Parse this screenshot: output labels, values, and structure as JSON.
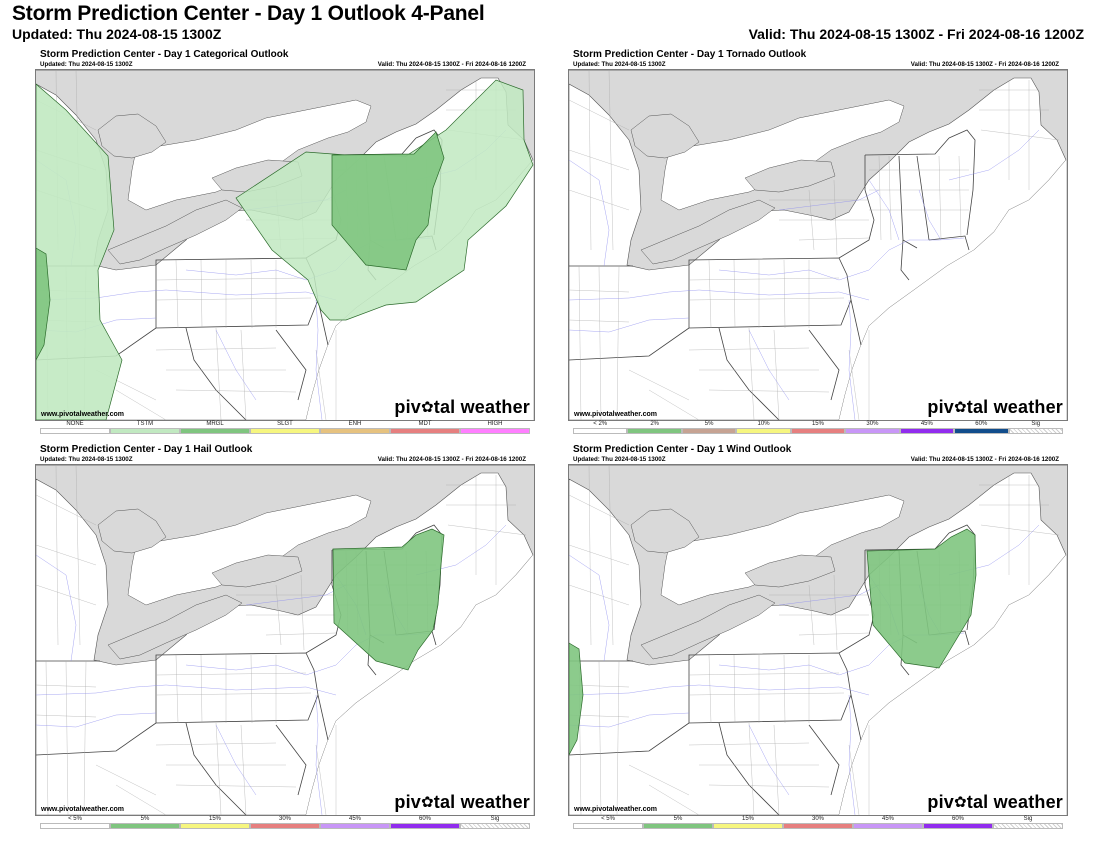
{
  "header": {
    "title": "Storm Prediction Center - Day 1 Outlook 4-Panel",
    "updated": "Updated: Thu 2024-08-15 1300Z",
    "valid": "Valid: Thu 2024-08-15 1300Z - Fri 2024-08-16 1200Z"
  },
  "watermark": {
    "site": "www.pivotalweather.com",
    "brand_a": "piv",
    "brand_b": "tal weather"
  },
  "panels": [
    {
      "title": "Storm Prediction Center - Day 1 Categorical Outlook",
      "updated": "Updated: Thu 2024-08-15 1300Z",
      "valid": "Valid: Thu 2024-08-15 1300Z - Fri 2024-08-16 1200Z",
      "legend": [
        {
          "label": "NONE",
          "color": "#ffffff"
        },
        {
          "label": "TSTM",
          "color": "#c1e9c1"
        },
        {
          "label": "MRGL",
          "color": "#7fc57f"
        },
        {
          "label": "SLGT",
          "color": "#f6f67f"
        },
        {
          "label": "ENH",
          "color": "#e6c27f"
        },
        {
          "label": "MDT",
          "color": "#e67f7f"
        },
        {
          "label": "HIGH",
          "color": "#ff7fff"
        }
      ]
    },
    {
      "title": "Storm Prediction Center - Day 1 Tornado Outlook",
      "updated": "Updated: Thu 2024-08-15 1300Z",
      "valid": "Valid: Thu 2024-08-15 1300Z - Fri 2024-08-16 1200Z",
      "legend": [
        {
          "label": "< 2%",
          "color": "#ffffff"
        },
        {
          "label": "2%",
          "color": "#7fc57f"
        },
        {
          "label": "5%",
          "color": "#c6a393"
        },
        {
          "label": "10%",
          "color": "#f6f67f"
        },
        {
          "label": "15%",
          "color": "#e67f7f"
        },
        {
          "label": "30%",
          "color": "#c896f7"
        },
        {
          "label": "45%",
          "color": "#912cee"
        },
        {
          "label": "60%",
          "color": "#114d8c"
        },
        {
          "label": "Sig",
          "color": "hatch"
        }
      ]
    },
    {
      "title": "Storm Prediction Center - Day 1 Hail Outlook",
      "updated": "Updated: Thu 2024-08-15 1300Z",
      "valid": "Valid: Thu 2024-08-15 1300Z - Fri 2024-08-16 1200Z",
      "legend": [
        {
          "label": "< 5%",
          "color": "#ffffff"
        },
        {
          "label": "5%",
          "color": "#7fc57f"
        },
        {
          "label": "15%",
          "color": "#f6f67f"
        },
        {
          "label": "30%",
          "color": "#e67f7f"
        },
        {
          "label": "45%",
          "color": "#c896f7"
        },
        {
          "label": "60%",
          "color": "#912cee"
        },
        {
          "label": "Sig",
          "color": "hatch"
        }
      ]
    },
    {
      "title": "Storm Prediction Center - Day 1 Wind Outlook",
      "updated": "Updated: Thu 2024-08-15 1300Z",
      "valid": "Valid: Thu 2024-08-15 1300Z - Fri 2024-08-16 1200Z",
      "legend": [
        {
          "label": "< 5%",
          "color": "#ffffff"
        },
        {
          "label": "5%",
          "color": "#7fc57f"
        },
        {
          "label": "15%",
          "color": "#f6f67f"
        },
        {
          "label": "30%",
          "color": "#e67f7f"
        },
        {
          "label": "45%",
          "color": "#c896f7"
        },
        {
          "label": "60%",
          "color": "#912cee"
        },
        {
          "label": "Sig",
          "color": "hatch"
        }
      ]
    }
  ],
  "map_colors": {
    "lake": "#d9d9d9",
    "land": "#ffffff",
    "state_border": "#444444",
    "county_border": "#9a9a9a",
    "roads": "#8a8aee",
    "tstm": "#c1e9c1",
    "mrgl": "#7fc57f",
    "risk_outline": "#2c6b2c"
  }
}
